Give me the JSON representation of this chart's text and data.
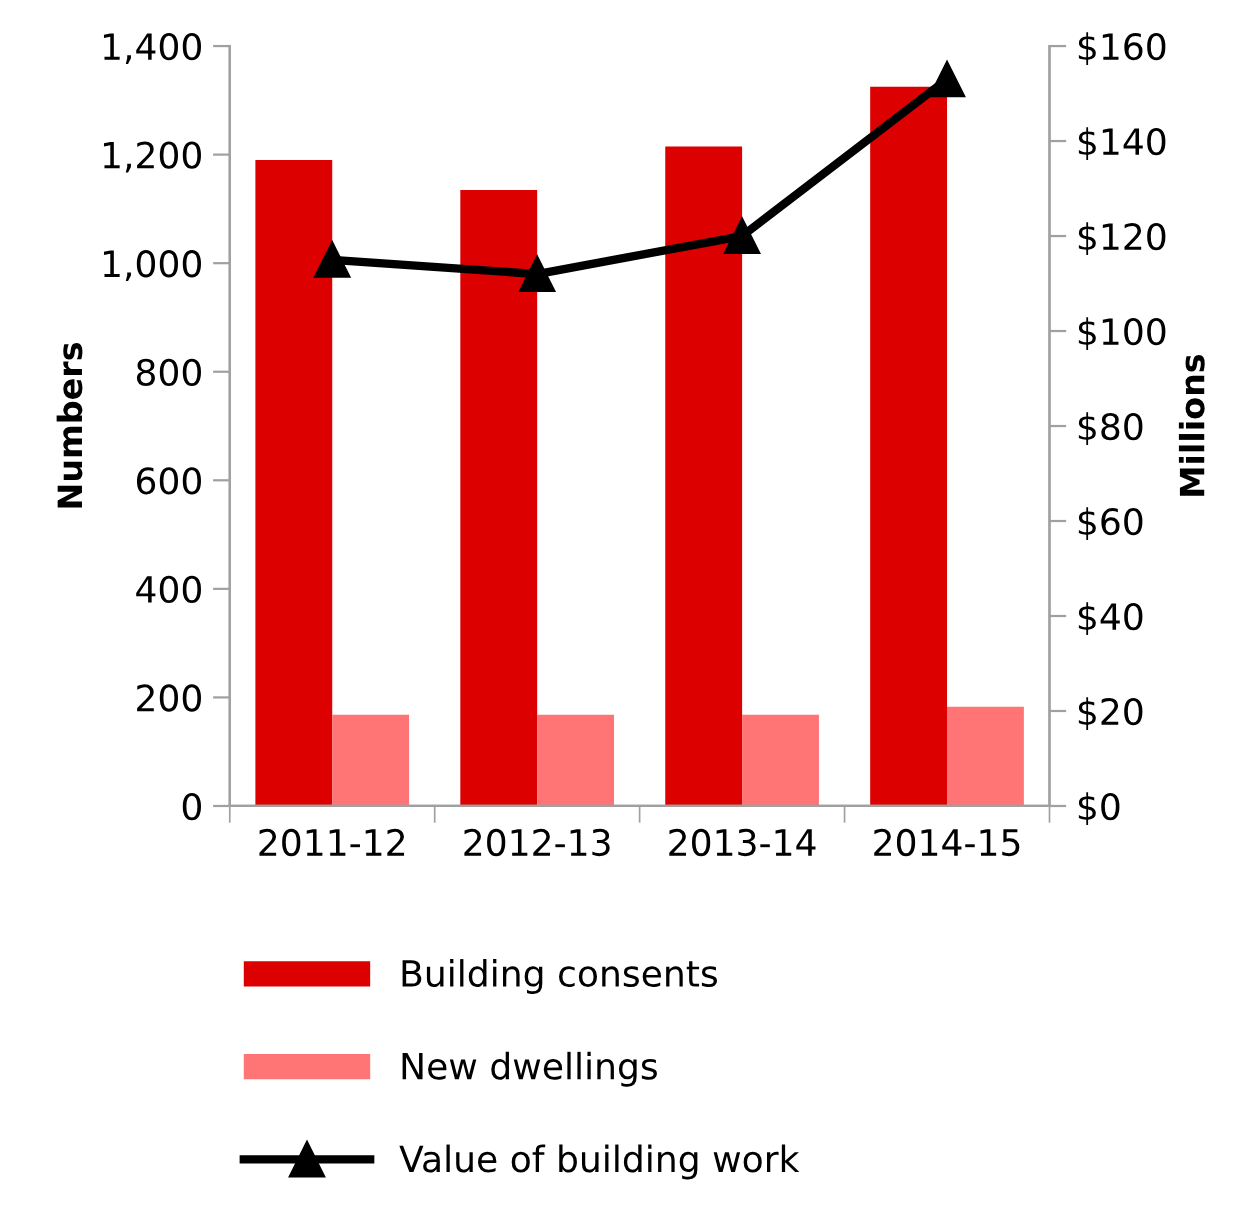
{
  "chart_data": {
    "type": "bar",
    "ylabel": "Numbers",
    "y2label": "Millions",
    "categories": [
      "2011-12",
      "2012-13",
      "2013-14",
      "2014-15"
    ],
    "series": [
      {
        "name": "Building consents",
        "color": "#dc0000",
        "values": [
          1190,
          1135,
          1215,
          1325
        ]
      },
      {
        "name": "New dwellings",
        "color": "#ff7575",
        "values": [
          168,
          168,
          168,
          183
        ]
      },
      {
        "name": "Value of building work",
        "type": "line",
        "axis": "y2",
        "color": "#000000",
        "marker": "triangle",
        "values": [
          115,
          112,
          120,
          153
        ]
      }
    ],
    "ylim": [
      0,
      1400
    ],
    "yticks": [
      0,
      {
        "value": 200,
        "label": "200"
      },
      {
        "value": 400,
        "label": "400"
      },
      {
        "value": 600,
        "label": "600"
      },
      {
        "value": 800,
        "label": "800"
      },
      {
        "value": 1000,
        "label": "1,000"
      },
      {
        "value": 1200,
        "label": "1,200"
      },
      {
        "value": 1400,
        "label": "1,400"
      }
    ],
    "y2lim": [
      0,
      160
    ],
    "y2ticks": [
      {
        "value": 0,
        "label": "$0"
      },
      {
        "value": 20,
        "label": "$20"
      },
      {
        "value": 40,
        "label": "$40"
      },
      {
        "value": 60,
        "label": "$60"
      },
      {
        "value": 80,
        "label": "$80"
      },
      {
        "value": 100,
        "label": "$100"
      },
      {
        "value": 120,
        "label": "$120"
      },
      {
        "value": 140,
        "label": "$140"
      },
      {
        "value": 160,
        "label": "$160"
      }
    ],
    "grid": false,
    "legend": "bottom"
  }
}
